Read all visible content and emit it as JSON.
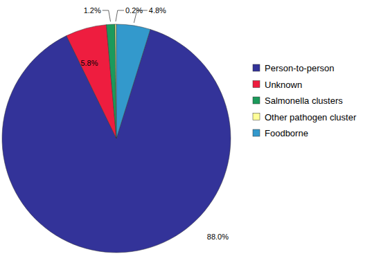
{
  "chart_data": {
    "type": "pie",
    "categories": [
      "Person-to-person",
      "Unknown",
      "Salmonella clusters",
      "Other pathogen cluster",
      "Foodborne"
    ],
    "values": [
      88.0,
      5.8,
      1.2,
      0.2,
      4.8
    ],
    "value_labels": [
      "88.0%",
      "5.8%",
      "1.2%",
      "0.2%",
      "4.8%"
    ],
    "colors": [
      "#333399",
      "#ee1d3f",
      "#1b9a5b",
      "#ffff99",
      "#3399cc"
    ],
    "data_labels": true,
    "legend": "right"
  }
}
